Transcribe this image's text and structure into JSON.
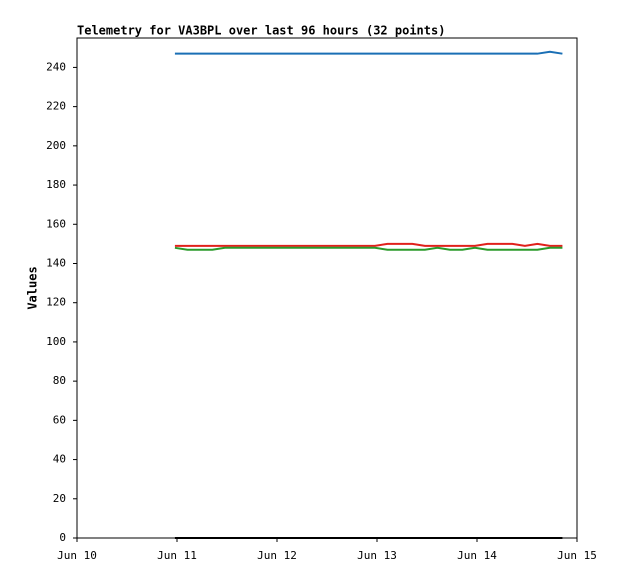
{
  "chart_data": {
    "type": "line",
    "title": "Telemetry for VA3BPL over last 96 hours (32 points)",
    "y_label": "Values",
    "x": [
      23.5,
      26.5,
      29.5,
      32.5,
      35.5,
      38.5,
      41.5,
      44.5,
      47.5,
      50.5,
      53.5,
      56.5,
      59.5,
      62.5,
      65.5,
      68.5,
      71.5,
      74.5,
      77.5,
      80.5,
      83.5,
      86.5,
      89.5,
      92.5,
      95.5,
      98.5,
      101.5,
      104.5,
      107.5,
      110.5,
      113.5,
      116.5
    ],
    "xlim": [
      0,
      120
    ],
    "xticks": [
      {
        "value": 0,
        "label": "Jun 10"
      },
      {
        "value": 24,
        "label": "Jun 11"
      },
      {
        "value": 48,
        "label": "Jun 12"
      },
      {
        "value": 72,
        "label": "Jun 13"
      },
      {
        "value": 96,
        "label": "Jun 14"
      },
      {
        "value": 120,
        "label": "Jun 15"
      }
    ],
    "ylim": [
      0,
      255
    ],
    "yticks": [
      0,
      20,
      40,
      60,
      80,
      100,
      120,
      140,
      160,
      180,
      200,
      220,
      240
    ],
    "series": [
      {
        "color": "#1a6fb5",
        "values": [
          247,
          247,
          247,
          247,
          247,
          247,
          247,
          247,
          247,
          247,
          247,
          247,
          247,
          247,
          247,
          247,
          247,
          247,
          247,
          247,
          247,
          247,
          247,
          247,
          247,
          247,
          247,
          247,
          247,
          247,
          248,
          247
        ]
      },
      {
        "color": "#e0201b",
        "values": [
          149,
          149,
          149,
          149,
          149,
          149,
          149,
          149,
          149,
          149,
          149,
          149,
          149,
          149,
          149,
          149,
          149,
          150,
          150,
          150,
          149,
          149,
          149,
          149,
          149,
          150,
          150,
          150,
          149,
          150,
          149,
          149
        ]
      },
      {
        "color": "#2a9a2a",
        "values": [
          148,
          147,
          147,
          147,
          148,
          148,
          148,
          148,
          148,
          148,
          148,
          148,
          148,
          148,
          148,
          148,
          148,
          147,
          147,
          147,
          147,
          148,
          147,
          147,
          148,
          147,
          147,
          147,
          147,
          147,
          148,
          148
        ]
      },
      {
        "color": "#000000",
        "values": [
          0,
          0,
          0,
          0,
          0,
          0,
          0,
          0,
          0,
          0,
          0,
          0,
          0,
          0,
          0,
          0,
          0,
          0,
          0,
          0,
          0,
          0,
          0,
          0,
          0,
          0,
          0,
          0,
          0,
          0,
          0,
          0
        ]
      }
    ]
  }
}
